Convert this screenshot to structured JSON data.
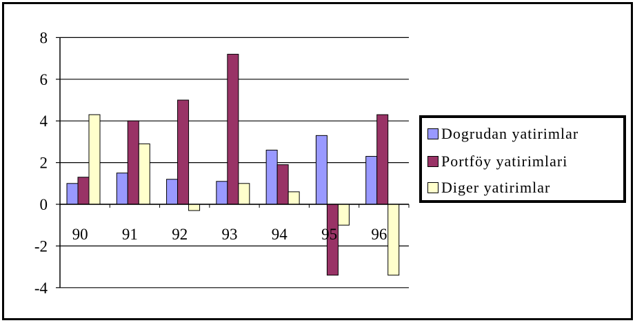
{
  "chart_data": {
    "type": "bar",
    "categories": [
      "90",
      "91",
      "92",
      "93",
      "94",
      "95",
      "96"
    ],
    "series": [
      {
        "name": "Dogrudan yatirimlar",
        "color": "#9999ff",
        "values": [
          1.0,
          1.5,
          1.2,
          1.1,
          2.6,
          3.3,
          2.3
        ]
      },
      {
        "name": "Portföy yatirimlari",
        "color": "#993366",
        "values": [
          1.3,
          4.0,
          5.0,
          7.2,
          1.9,
          -3.4,
          4.3
        ]
      },
      {
        "name": "Diger yatirimlar",
        "color": "#ffffcc",
        "values": [
          4.3,
          2.9,
          -0.3,
          1.0,
          0.6,
          -1.0,
          -3.4
        ]
      }
    ],
    "yticks": [
      "8",
      "6",
      "4",
      "2",
      "0",
      "-2",
      "-4"
    ],
    "ylim": [
      -4,
      8
    ],
    "grid": true,
    "legend": "right"
  }
}
